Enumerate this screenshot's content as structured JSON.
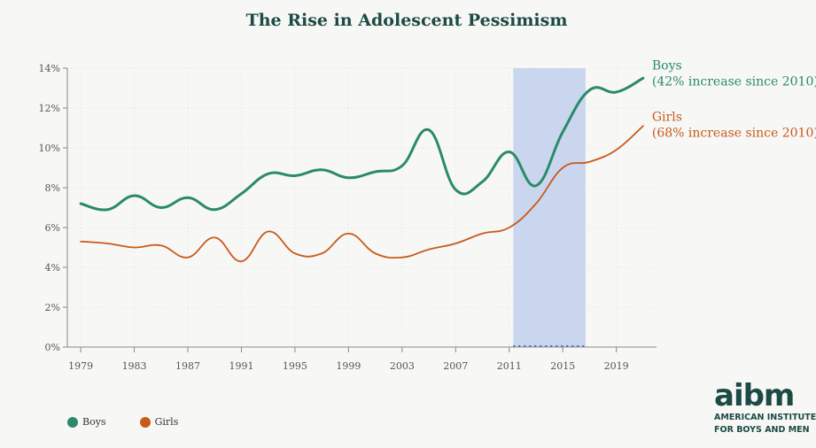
{
  "title": "The Rise in Adolescent Pessimism",
  "legend": {
    "boys": "Boys",
    "girls": "Girls"
  },
  "logo": {
    "mark": "aibm",
    "line1": "AMERICAN INSTITUTE",
    "line2": "FOR BOYS AND MEN"
  },
  "colors": {
    "boys": "#2a8a6a",
    "girls": "#c85a1c",
    "highlight": "#c9d6ee",
    "title": "#1c4a44"
  },
  "chart_data": {
    "type": "line",
    "title": "The Rise in Adolescent Pessimism",
    "x_ticks": [
      "1979",
      "1983",
      "1987",
      "1991",
      "1995",
      "1999",
      "2003",
      "2007",
      "2011",
      "2015",
      "2019"
    ],
    "y_ticks": [
      "0%",
      "2%",
      "4%",
      "6%",
      "8%",
      "10%",
      "12%",
      "14%"
    ],
    "xlim": [
      1978,
      2022
    ],
    "ylim": [
      0,
      14
    ],
    "highlight_range": [
      2011.3,
      2016.7
    ],
    "series": [
      {
        "name": "Boys",
        "label_line1": "Boys",
        "label_line2": "(42% increase since 2010)",
        "color": "#2a8a6a",
        "x": [
          1979,
          1981,
          1983,
          1985,
          1987,
          1989,
          1991,
          1993,
          1995,
          1997,
          1999,
          2001,
          2003,
          2005,
          2007,
          2009,
          2011,
          2013,
          2015,
          2017,
          2019,
          2021
        ],
        "y": [
          7.2,
          6.9,
          7.6,
          7.0,
          7.5,
          6.9,
          7.7,
          8.7,
          8.6,
          8.9,
          8.5,
          8.8,
          9.1,
          10.9,
          7.9,
          8.3,
          9.8,
          8.1,
          10.8,
          12.9,
          12.8,
          13.5
        ]
      },
      {
        "name": "Girls",
        "label_line1": "Girls",
        "label_line2": "(68% increase since 2010)",
        "color": "#c85a1c",
        "x": [
          1979,
          1981,
          1983,
          1985,
          1987,
          1989,
          1991,
          1993,
          1995,
          1997,
          1999,
          2001,
          2003,
          2005,
          2007,
          2009,
          2011,
          2013,
          2015,
          2017,
          2019,
          2021
        ],
        "y": [
          5.3,
          5.2,
          5.0,
          5.1,
          4.5,
          5.5,
          4.3,
          5.8,
          4.7,
          4.7,
          5.7,
          4.7,
          4.5,
          4.9,
          5.2,
          5.7,
          6.0,
          7.2,
          9.0,
          9.3,
          9.9,
          11.1
        ]
      }
    ]
  }
}
